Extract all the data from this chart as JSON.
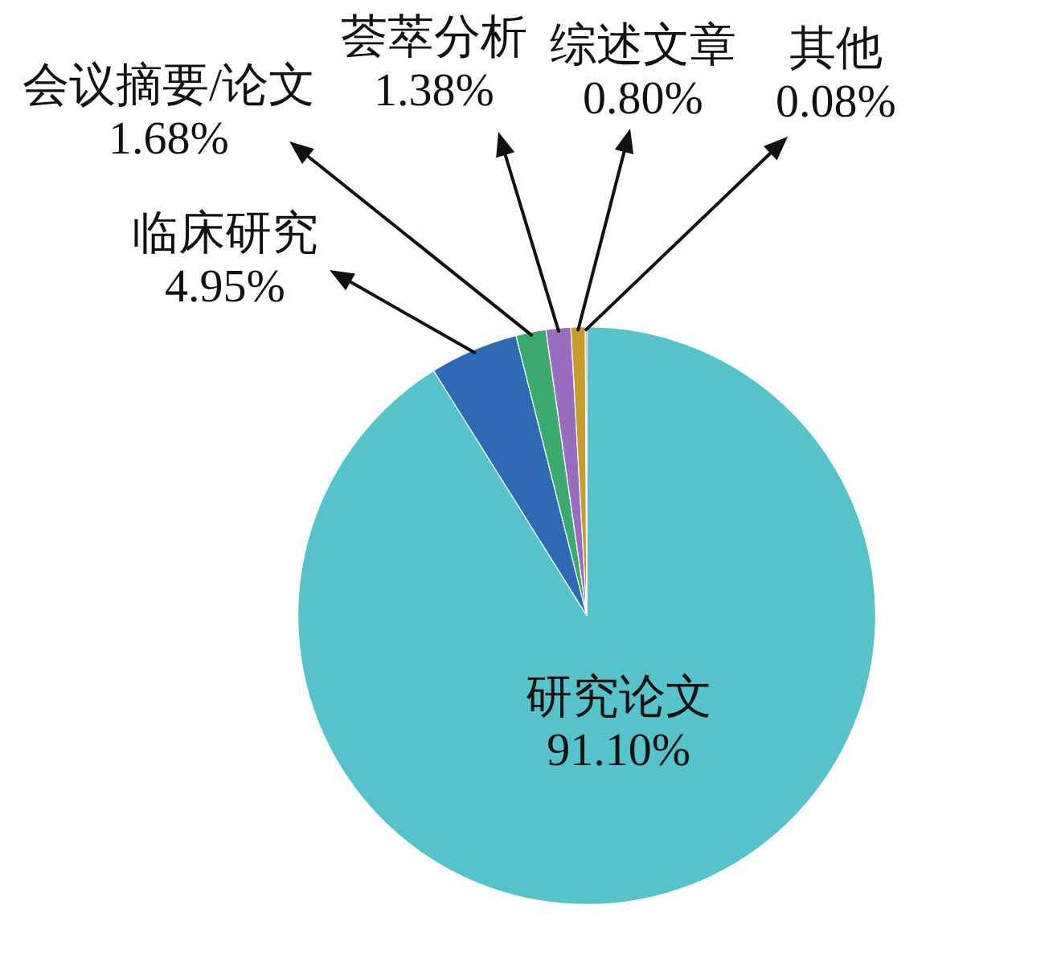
{
  "chart_data": {
    "type": "pie",
    "categories": [
      "研究论文",
      "临床研究",
      "会议摘要/论文",
      "荟萃分析",
      "综述文章",
      "其他"
    ],
    "values": [
      91.1,
      4.95,
      1.68,
      1.38,
      0.8,
      0.08
    ],
    "colors": [
      "#56c3cb",
      "#2f6ab5",
      "#3aaa6f",
      "#9a6cbf",
      "#c99a2e",
      "#c0504d"
    ],
    "value_labels": [
      "91.10%",
      "4.95%",
      "1.68%",
      "1.38%",
      "0.80%",
      "0.08%"
    ]
  }
}
